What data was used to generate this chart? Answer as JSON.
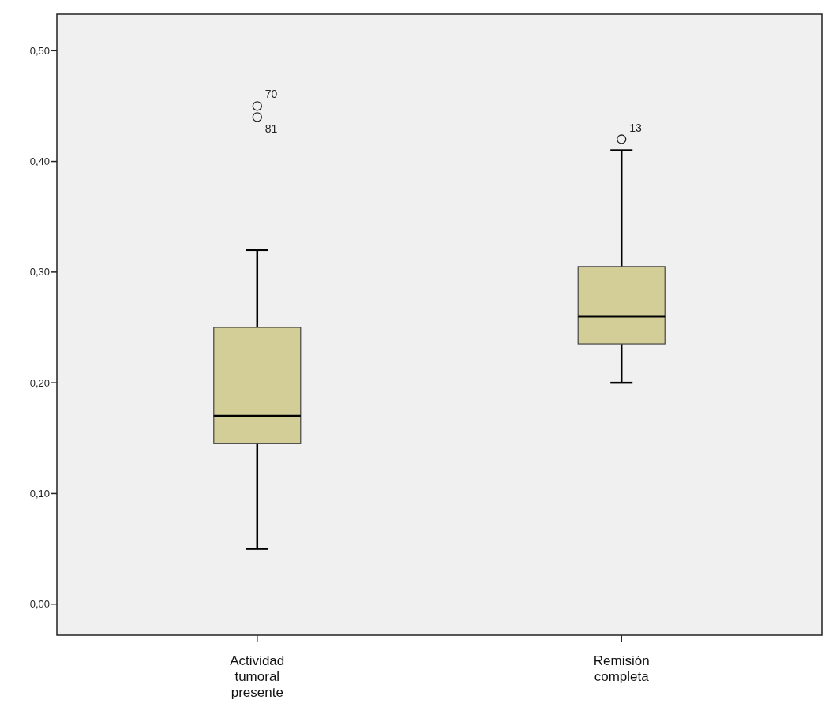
{
  "chart_data": {
    "type": "box",
    "categories": [
      "Actividad tumoral presente",
      "Remisión completa"
    ],
    "boxes": [
      {
        "low": 0.05,
        "q1": 0.145,
        "median": 0.17,
        "q3": 0.25,
        "high": 0.32,
        "outliers": [
          0.45,
          0.44
        ]
      },
      {
        "low": 0.2,
        "q1": 0.235,
        "median": 0.26,
        "q3": 0.305,
        "high": 0.41,
        "outliers": [
          0.42
        ]
      }
    ],
    "color": "#d3ce98",
    "ylim": [
      -0.028,
      0.533
    ],
    "yticks": [
      {
        "value": 0,
        "label": "0,00"
      },
      {
        "value": 0.1,
        "label": "0,10"
      },
      {
        "value": 0.2,
        "label": "0,20"
      },
      {
        "value": 0.3,
        "label": "0,30"
      },
      {
        "value": 0.4,
        "label": "0,40"
      },
      {
        "value": 0.5,
        "label": "0,50"
      }
    ],
    "annotations": [
      "70",
      "81",
      "13"
    ],
    "grid": false
  }
}
